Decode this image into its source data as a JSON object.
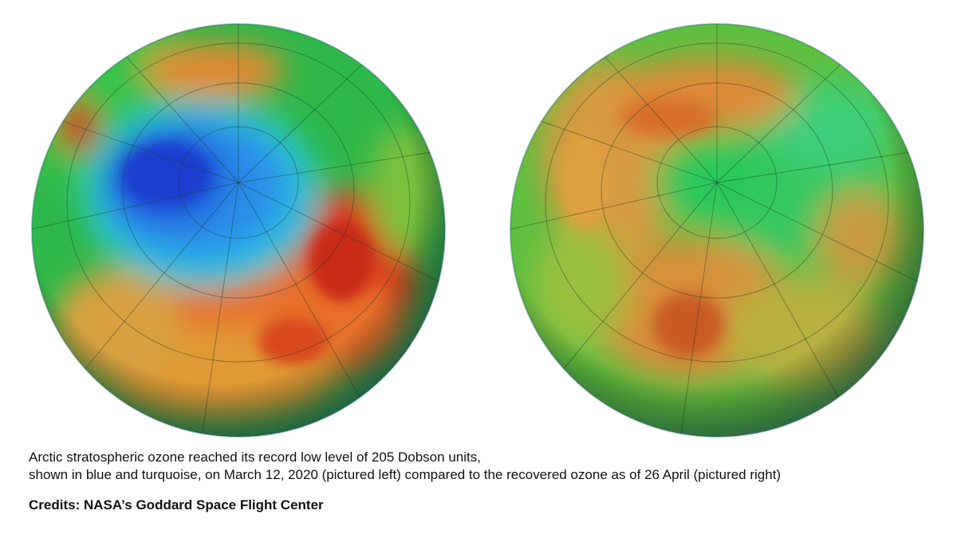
{
  "caption": {
    "line1": "Arctic stratospheric ozone reached its record low level of 205 Dobson units,",
    "line2": "shown in blue and turquoise, on March 12, 2020 (pictured left) compared to the recovered ozone as of 26 April (pictured right)"
  },
  "credits": "Credits: NASA’s Goddard Space Flight Center",
  "images": {
    "left": {
      "depicts": "ozone-map-march-12-2020",
      "palette": [
        "#1a4fd8",
        "#27a9e8",
        "#20c060",
        "#f0a030",
        "#d83a1c"
      ]
    },
    "right": {
      "depicts": "ozone-map-april-26-2020",
      "palette": [
        "#20c060",
        "#7ccc38",
        "#e8a040",
        "#c85a20"
      ]
    }
  }
}
